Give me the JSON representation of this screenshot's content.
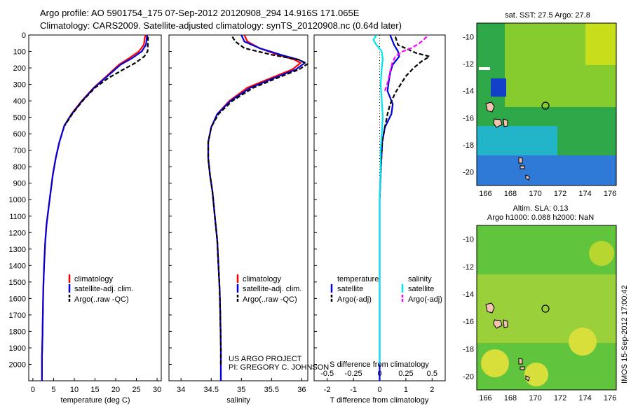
{
  "header": {
    "line1": "Argo profile: AO 5901754_175 07-Sep-2012 20120908_294 14.916S 171.065E",
    "line2": "Climatology: CARS2009. Satellite-adjusted climatology: synTS_20120908.nc (0.64d later)"
  },
  "credits": {
    "project": "US ARGO PROJECT",
    "pi": "PI: GREGORY C. JOHNSON",
    "stamp": "IMOS 15-Sep-2012 17:00:42"
  },
  "maps": {
    "sst": {
      "title": "sat. SST: 27.5 Argo: 27.8"
    },
    "sla": {
      "title1": "Altim. SLA: 0.13",
      "title2": "Argo h1000: 0.088 h2000: NaN"
    },
    "xticks": [
      "166",
      "168",
      "170",
      "172",
      "174",
      "176"
    ],
    "yticks": [
      "-10",
      "-12",
      "-14",
      "-16",
      "-18",
      "-20"
    ],
    "float_position": {
      "lon": 171.065,
      "lat": -14.916
    }
  },
  "colors": {
    "climatology": "#ff0000",
    "satellite": "#0000dd",
    "argo": "#000000",
    "salinity_satellite": "#00e5ee",
    "salinity_argo": "#ff00ff"
  },
  "chart_data": [
    {
      "type": "line",
      "xlabel": "temperature (deg C)",
      "ylabel": "",
      "xlim": [
        -1,
        31
      ],
      "ylim": [
        2100,
        0
      ],
      "xticks": [
        "0",
        "5",
        "10",
        "15",
        "20",
        "25",
        "30"
      ],
      "yticks": [
        "0",
        "100",
        "200",
        "300",
        "400",
        "500",
        "600",
        "700",
        "800",
        "900",
        "1000",
        "1100",
        "1200",
        "1300",
        "1400",
        "1500",
        "1600",
        "1700",
        "1800",
        "1900",
        "2000"
      ],
      "legend": [
        "climatology",
        "satellite-adj. clim.",
        "Argo(..raw -QC)"
      ],
      "series": [
        {
          "name": "climatology",
          "x": [
            27.2,
            27.0,
            26.8,
            25.6,
            23.3,
            20.8,
            17.8,
            14.7,
            11.8,
            9.3,
            7.6,
            6.4,
            5.5,
            4.8,
            4.3,
            3.8,
            3.3,
            3.0,
            2.7,
            2.5,
            2.4,
            2.3,
            2.2,
            2.2,
            2.2
          ],
          "y": [
            0,
            20,
            60,
            100,
            140,
            180,
            250,
            320,
            400,
            480,
            550,
            650,
            750,
            850,
            950,
            1050,
            1150,
            1250,
            1400,
            1550,
            1700,
            1850,
            1950,
            2050,
            2100
          ]
        },
        {
          "name": "satellite-adj. clim.",
          "x": [
            27.6,
            27.5,
            27.3,
            26.3,
            24.0,
            21.2,
            18.0,
            14.8,
            11.9,
            9.4,
            7.6,
            6.4,
            5.5,
            4.8,
            4.3,
            3.8,
            3.3,
            3.0,
            2.7,
            2.5,
            2.4,
            2.3,
            2.2,
            2.2,
            2.2
          ],
          "y": [
            0,
            20,
            60,
            100,
            140,
            180,
            250,
            320,
            400,
            480,
            550,
            650,
            750,
            850,
            950,
            1050,
            1150,
            1250,
            1400,
            1550,
            1700,
            1850,
            1950,
            2050,
            2100
          ]
        },
        {
          "name": "Argo(..raw -QC)",
          "x": [
            27.8,
            27.8,
            27.7,
            26.9,
            24.7,
            21.8,
            18.3,
            15.0,
            12.0,
            9.5,
            7.7
          ],
          "y": [
            10,
            40,
            100,
            130,
            170,
            210,
            260,
            320,
            400,
            480,
            550
          ]
        }
      ]
    },
    {
      "type": "line",
      "xlabel": "salinity",
      "ylabel": "",
      "xlim": [
        33.8,
        36.1
      ],
      "ylim": [
        2100,
        0
      ],
      "xticks": [
        "34",
        "34.5",
        "35",
        "35.5",
        "36"
      ],
      "legend": [
        "climatology",
        "satellite-adj. clim.",
        "Argo(..raw -QC)"
      ],
      "series": [
        {
          "name": "climatology",
          "x": [
            35.05,
            35.1,
            35.3,
            35.6,
            35.88,
            35.98,
            35.84,
            35.5,
            35.1,
            34.8,
            34.6,
            34.5,
            34.45,
            34.45,
            34.48,
            34.52,
            34.56,
            34.6,
            34.62,
            34.64,
            34.65,
            34.66,
            34.66
          ],
          "y": [
            0,
            40,
            80,
            120,
            150,
            170,
            210,
            260,
            320,
            400,
            480,
            560,
            650,
            750,
            850,
            950,
            1100,
            1250,
            1400,
            1550,
            1700,
            1900,
            2100
          ]
        },
        {
          "name": "satellite-adj. clim.",
          "x": [
            35.0,
            35.05,
            35.3,
            35.65,
            35.95,
            36.05,
            35.9,
            35.55,
            35.15,
            34.82,
            34.6,
            34.5,
            34.45,
            34.45,
            34.48,
            34.52,
            34.56,
            34.6,
            34.62,
            34.64,
            34.65,
            34.66,
            34.66
          ],
          "y": [
            0,
            40,
            80,
            120,
            150,
            170,
            210,
            260,
            320,
            400,
            480,
            560,
            650,
            750,
            850,
            950,
            1100,
            1250,
            1400,
            1550,
            1700,
            1900,
            2100
          ]
        },
        {
          "name": "Argo(..raw -QC)",
          "x": [
            34.85,
            34.9,
            35.05,
            35.5,
            35.95,
            36.1,
            35.95,
            35.6,
            35.2,
            34.85,
            34.62,
            34.5,
            34.45,
            34.45,
            34.48,
            34.52,
            34.56,
            34.6,
            34.62,
            34.64,
            34.65,
            34.66,
            34.66
          ],
          "y": [
            10,
            40,
            80,
            120,
            150,
            175,
            210,
            260,
            320,
            400,
            480,
            560,
            650,
            750,
            850,
            950,
            1100,
            1250,
            1400,
            1550,
            1700,
            1900,
            2000
          ]
        }
      ]
    },
    {
      "type": "line",
      "xlabel": "T difference from climatology",
      "xlabel_top": "S difference from climatology",
      "ylabel": "",
      "xlim": [
        -2.5,
        2.5
      ],
      "ylim": [
        2100,
        0
      ],
      "xticks": [
        "-2",
        "-1",
        "0",
        "1",
        "2"
      ],
      "xticks_s": [
        "-0.5",
        "-0.25",
        "0",
        "0.25",
        "0.5"
      ],
      "xlim_s": [
        -0.625,
        0.625
      ],
      "legend": [
        "temperature",
        "satellite",
        "Argo(-adj)",
        "salinity",
        "satellite",
        "Argo(-adj)"
      ],
      "series": [
        {
          "name": "temperature satellite",
          "x": [
            0.4,
            0.55,
            0.7,
            0.75,
            0.5,
            0.4,
            0.35,
            0.3,
            0.5,
            0.45,
            0.2,
            0.1,
            0.05,
            0.0,
            0.0,
            0.0,
            0.0,
            0.0
          ],
          "y": [
            0,
            60,
            100,
            130,
            180,
            230,
            280,
            340,
            420,
            480,
            560,
            650,
            800,
            1000,
            1300,
            1600,
            1900,
            2100
          ]
        },
        {
          "name": "temperature Argo(-adj)",
          "x": [
            0.6,
            0.7,
            1.4,
            1.9,
            1.6,
            1.3,
            1.0,
            0.8,
            0.6,
            0.4,
            0.3,
            0.2,
            0.1,
            0.05,
            0.0
          ],
          "y": [
            10,
            60,
            110,
            130,
            160,
            200,
            250,
            300,
            350,
            420,
            480,
            560,
            650,
            800,
            1000
          ]
        },
        {
          "name": "salinity satellite",
          "x": [
            -0.03,
            -0.06,
            -0.03,
            0.02,
            0.03,
            0.02,
            0.01,
            0.02,
            0.03,
            0.02,
            0.01,
            0.01,
            0.0,
            0.0,
            0.0
          ],
          "y": [
            0,
            30,
            60,
            100,
            150,
            200,
            300,
            400,
            500,
            600,
            700,
            800,
            1000,
            1400,
            2000
          ]
        },
        {
          "name": "salinity Argo(-adj)",
          "x": [
            0.45,
            0.38,
            0.3,
            0.22,
            0.15,
            0.12,
            0.1,
            0.08,
            0.05
          ],
          "y": [
            10,
            50,
            80,
            100,
            130,
            170,
            220,
            280,
            340
          ]
        }
      ]
    }
  ]
}
